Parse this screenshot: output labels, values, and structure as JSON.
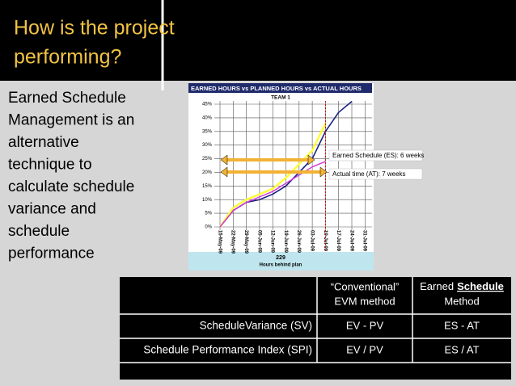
{
  "title": [
    "How is the project",
    "performing?"
  ],
  "body": [
    "Earned Schedule",
    "Management is an",
    "alternative",
    "technique to",
    "calculate schedule",
    "variance and",
    "schedule",
    "performance"
  ],
  "chart": {
    "type": "line",
    "title": "EARNED HOURS vs PLANNED HOURS vs ACTUAL HOURS",
    "subtitle": "TEAM 1",
    "categories": [
      "15-May-09",
      "22-May-09",
      "29-May-09",
      "05-Jun-09",
      "12-Jun-09",
      "19-Jun-09",
      "26-Jun-09",
      "03-Jul-09",
      "10-Jul-09",
      "17-Jul-09",
      "24-Jul-09",
      "31-Jul-09"
    ],
    "ylim": [
      0,
      45
    ],
    "yticks": [
      {
        "value": 0,
        "label": "0%"
      },
      {
        "value": 5,
        "label": "5%"
      },
      {
        "value": 10,
        "label": "10%"
      },
      {
        "value": 15,
        "label": "15%"
      },
      {
        "value": 20,
        "label": "20%"
      },
      {
        "value": 25,
        "label": "25%"
      },
      {
        "value": 30,
        "label": "30%"
      },
      {
        "value": 35,
        "label": "35%"
      },
      {
        "value": 40,
        "label": "40%"
      },
      {
        "value": 45,
        "label": "45%"
      }
    ],
    "series": [
      {
        "color": "#1a2380",
        "values": [
          0,
          6,
          9,
          10,
          12,
          15,
          20,
          25,
          35,
          42,
          46,
          null
        ]
      },
      {
        "color": "#ffff33",
        "values": [
          0,
          7,
          10,
          12,
          14,
          18,
          23,
          28,
          38,
          null,
          null,
          null
        ]
      },
      {
        "color": "#d633d6",
        "values": [
          0,
          6,
          9,
          11,
          13,
          16,
          19,
          22,
          24,
          null,
          null,
          null
        ]
      }
    ],
    "annotations": [
      "Earned Schedule (ES): 6 weeks",
      "Actual time (AT): 7 weeks"
    ],
    "footer_value": "229",
    "footer_label": "Hours behind plan"
  },
  "table": {
    "header": {
      "conventional": [
        "“Conventional”",
        "EVM method"
      ],
      "earned_schedule": [
        "Earned",
        "Schedule",
        "Method"
      ]
    },
    "rows": [
      [
        "ScheduleVariance (SV)",
        "EV - PV",
        "ES - AT"
      ],
      [
        "Schedule Performance Index (SPI)",
        "EV / PV",
        "ES / AT"
      ]
    ]
  }
}
